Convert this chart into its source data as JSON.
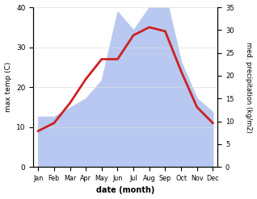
{
  "months": [
    "Jan",
    "Feb",
    "Mar",
    "Apr",
    "May",
    "Jun",
    "Jul",
    "Aug",
    "Sep",
    "Oct",
    "Nov",
    "Dec"
  ],
  "temp": [
    9,
    11,
    16,
    22,
    27,
    27,
    33,
    35,
    34,
    24,
    15,
    11
  ],
  "precip": [
    11,
    11,
    13,
    15,
    19,
    34,
    30,
    35,
    38,
    23,
    15,
    12
  ],
  "temp_color": "#cc2222",
  "precip_color": "#b8c8f0",
  "temp_ylim": [
    0,
    40
  ],
  "precip_ylim": [
    0,
    35
  ],
  "temp_yticks": [
    0,
    10,
    20,
    30,
    40
  ],
  "precip_yticks": [
    0,
    5,
    10,
    15,
    20,
    25,
    30,
    35
  ],
  "ylabel_left": "max temp (C)",
  "ylabel_right": "med. precipitation (kg/m2)",
  "xlabel": "date (month)",
  "bg_color": "#ffffff",
  "line_width": 2.0,
  "figsize": [
    3.18,
    2.47
  ],
  "dpi": 100
}
